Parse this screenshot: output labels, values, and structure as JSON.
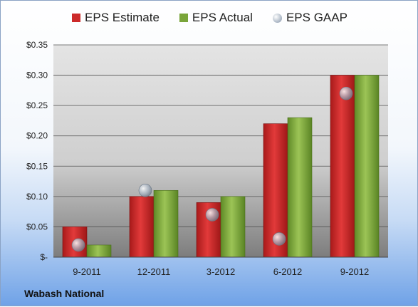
{
  "chart_data": {
    "type": "bar",
    "categories": [
      "9-2011",
      "12-2011",
      "3-2012",
      "6-2012",
      "9-2012"
    ],
    "series": [
      {
        "name": "EPS Estimate",
        "type": "bar",
        "color": "#cc2a2a",
        "values": [
          0.05,
          0.1,
          0.09,
          0.22,
          0.3
        ]
      },
      {
        "name": "EPS Actual",
        "type": "bar",
        "color": "#7aa53a",
        "values": [
          0.02,
          0.11,
          0.1,
          0.23,
          0.3
        ]
      },
      {
        "name": "EPS GAAP",
        "type": "scatter",
        "color": "#a7b3c2",
        "values": [
          0.02,
          0.11,
          0.07,
          0.03,
          0.27
        ]
      }
    ],
    "yticks": [
      0,
      0.05,
      0.1,
      0.15,
      0.2,
      0.25,
      0.3,
      0.35
    ],
    "ytick_labels": [
      "$-",
      "$0.05",
      "$0.10",
      "$0.15",
      "$0.20",
      "$0.25",
      "$0.30",
      "$0.35"
    ],
    "ylim": [
      0,
      0.35
    ],
    "grid": true,
    "legend_position": "top"
  },
  "footer": {
    "company": "Wabash National"
  }
}
